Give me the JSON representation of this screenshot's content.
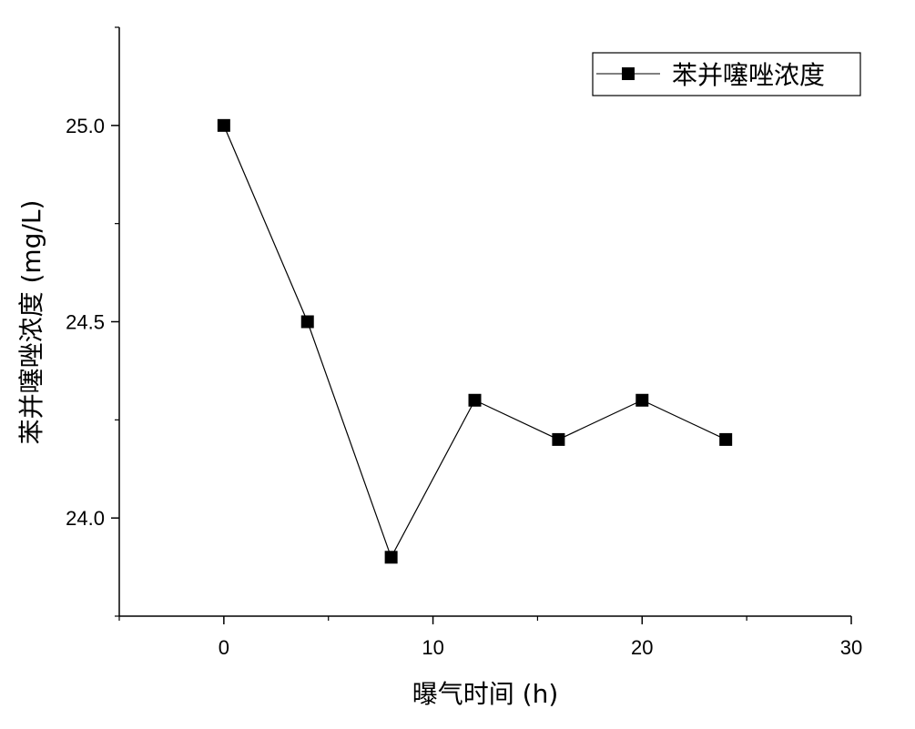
{
  "chart_data": {
    "type": "line",
    "title": "",
    "xlabel": "曝气时间 (h)",
    "ylabel": "苯并噻唑浓度 (mg/L)",
    "xlim": [
      -5,
      30
    ],
    "ylim": [
      23.75,
      25.25
    ],
    "x_ticks": [
      0,
      10,
      20,
      30
    ],
    "x_tick_labels": [
      "0",
      "10",
      "20",
      "30"
    ],
    "y_ticks": [
      24.0,
      24.5,
      25.0
    ],
    "y_tick_labels": [
      "24.0",
      "24.5",
      "25.0"
    ],
    "grid": false,
    "legend_position": "top-right",
    "series": [
      {
        "name": "苯并噻唑浓度",
        "x": [
          0,
          4,
          8,
          12,
          16,
          20,
          24
        ],
        "y": [
          25.0,
          24.5,
          23.9,
          24.3,
          24.2,
          24.3,
          24.2
        ],
        "marker": "square",
        "color": "#000000"
      }
    ]
  }
}
